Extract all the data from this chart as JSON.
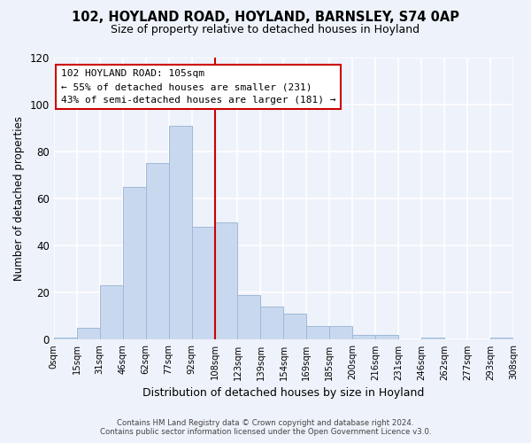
{
  "title": "102, HOYLAND ROAD, HOYLAND, BARNSLEY, S74 0AP",
  "subtitle": "Size of property relative to detached houses in Hoyland",
  "xlabel": "Distribution of detached houses by size in Hoyland",
  "ylabel": "Number of detached properties",
  "bar_labels": [
    "0sqm",
    "15sqm",
    "31sqm",
    "46sqm",
    "62sqm",
    "77sqm",
    "92sqm",
    "108sqm",
    "123sqm",
    "139sqm",
    "154sqm",
    "169sqm",
    "185sqm",
    "200sqm",
    "216sqm",
    "231sqm",
    "246sqm",
    "262sqm",
    "277sqm",
    "293sqm",
    "308sqm"
  ],
  "bar_values": [
    1,
    5,
    23,
    65,
    75,
    91,
    48,
    50,
    19,
    14,
    11,
    6,
    6,
    2,
    2,
    0,
    1,
    0,
    0,
    1
  ],
  "bar_color": "#c8d9ef",
  "bar_edge_color": "#a0b8d8",
  "vline_x": 7,
  "vline_color": "#cc0000",
  "annotation_title": "102 HOYLAND ROAD: 105sqm",
  "annotation_line1": "← 55% of detached houses are smaller (231)",
  "annotation_line2": "43% of semi-detached houses are larger (181) →",
  "annotation_box_color": "#ffffff",
  "annotation_box_edge": "#cc0000",
  "ylim": [
    0,
    120
  ],
  "yticks": [
    0,
    20,
    40,
    60,
    80,
    100,
    120
  ],
  "footer1": "Contains HM Land Registry data © Crown copyright and database right 2024.",
  "footer2": "Contains public sector information licensed under the Open Government Licence v3.0.",
  "background_color": "#eef2fa",
  "grid_color": "#ffffff"
}
